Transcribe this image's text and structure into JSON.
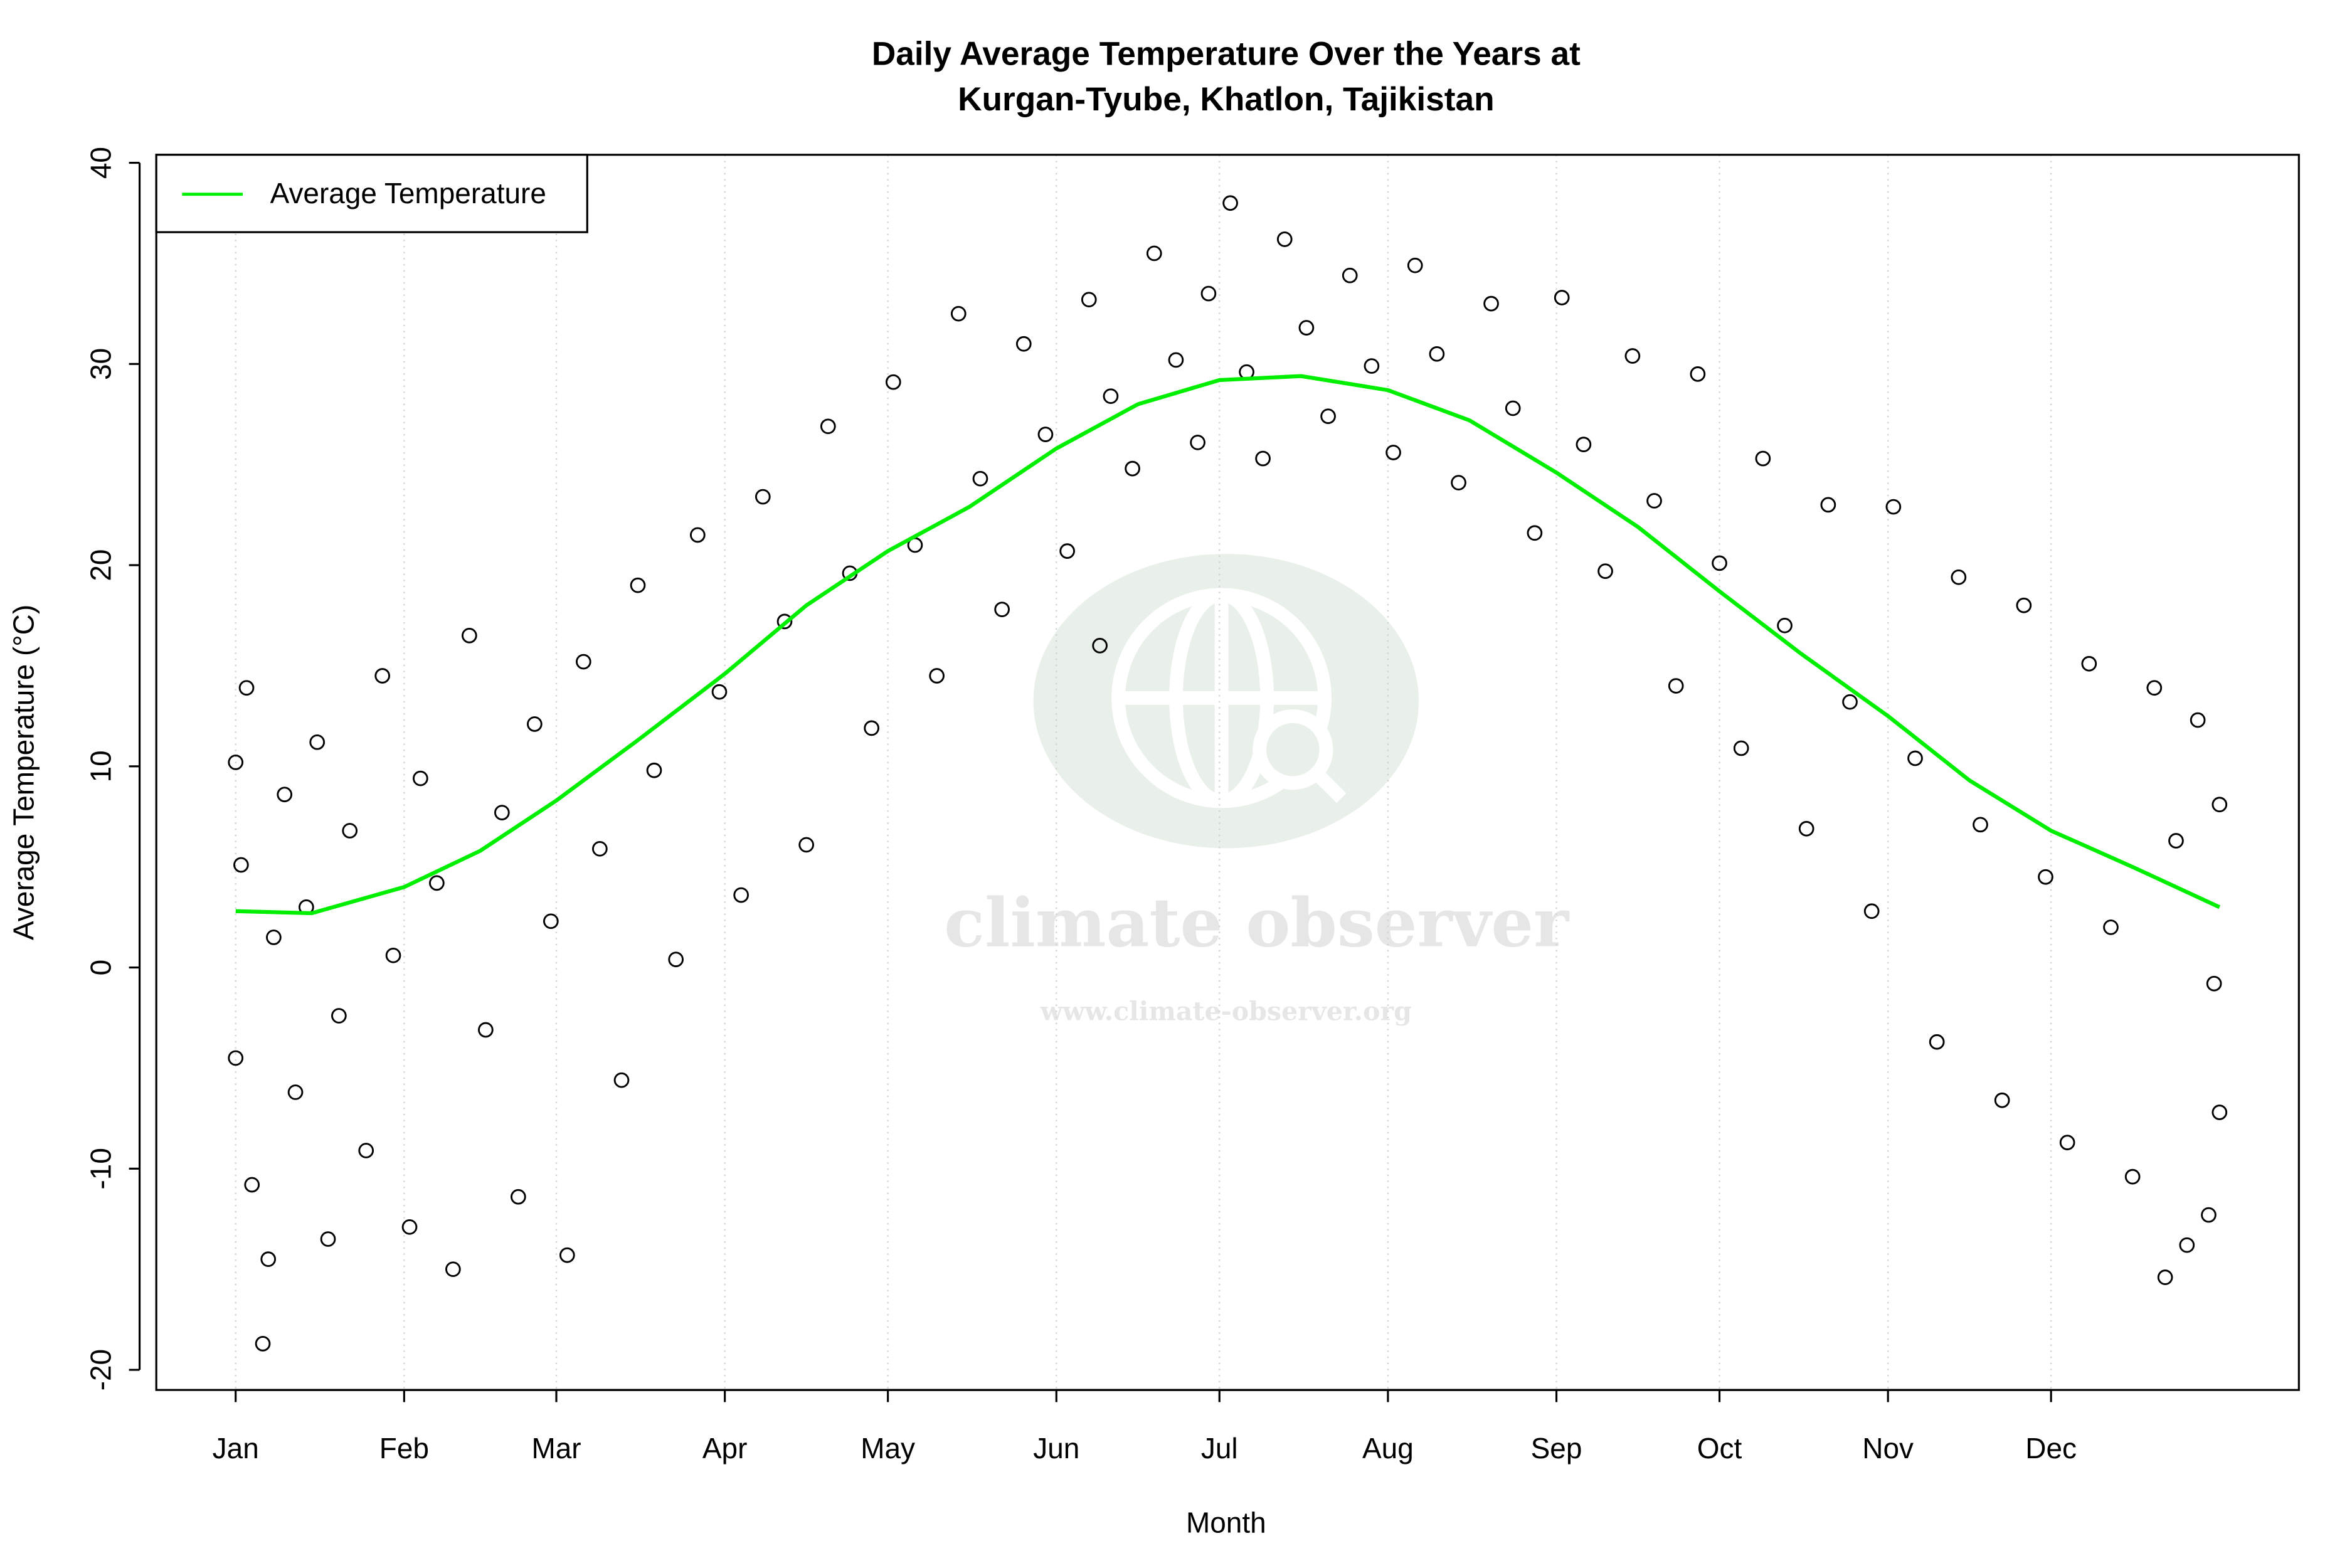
{
  "chart_data": {
    "type": "scatter",
    "title": [
      "Daily Average Temperature Over the Years at",
      "Kurgan-Tyube, Khatlon, Tajikistan"
    ],
    "x_label": "Month",
    "y_label": "Average Temperature (°C)",
    "watermark": [
      "climate observer",
      "www.climate-observer.org"
    ],
    "xlim": [
      -13.6,
      380.6
    ],
    "ylim": [
      -21,
      40.4
    ],
    "xticks": [
      {
        "value": 1,
        "label": "Jan"
      },
      {
        "value": 32,
        "label": "Feb"
      },
      {
        "value": 60,
        "label": "Mar"
      },
      {
        "value": 91,
        "label": "Apr"
      },
      {
        "value": 121,
        "label": "May"
      },
      {
        "value": 152,
        "label": "Jun"
      },
      {
        "value": 182,
        "label": "Jul"
      },
      {
        "value": 213,
        "label": "Aug"
      },
      {
        "value": 244,
        "label": "Sep"
      },
      {
        "value": 274,
        "label": "Oct"
      },
      {
        "value": 305,
        "label": "Nov"
      },
      {
        "value": 335,
        "label": "Dec"
      }
    ],
    "yticks": [
      -20,
      -10,
      0,
      10,
      20,
      30,
      40
    ],
    "grid": true,
    "legend": "top-left",
    "point_color": "#000000",
    "x": [
      1,
      1,
      2,
      3,
      4,
      6,
      7,
      8,
      10,
      12,
      14,
      16,
      18,
      20,
      22,
      25,
      28,
      30,
      33,
      35,
      38,
      41,
      44,
      47,
      50,
      53,
      56,
      59,
      62,
      65,
      68,
      72,
      75,
      78,
      82,
      86,
      90,
      94,
      98,
      102,
      106,
      110,
      114,
      118,
      122,
      126,
      130,
      134,
      138,
      142,
      146,
      150,
      154,
      158,
      160,
      162,
      166,
      170,
      174,
      178,
      180,
      184,
      187,
      190,
      194,
      198,
      202,
      206,
      210,
      214,
      218,
      222,
      226,
      232,
      236,
      240,
      245,
      249,
      253,
      258,
      262,
      266,
      270,
      274,
      278,
      282,
      286,
      290,
      294,
      298,
      302,
      306,
      310,
      314,
      318,
      322,
      326,
      330,
      334,
      338,
      342,
      346,
      350,
      354,
      356,
      358,
      360,
      362,
      364,
      365,
      366,
      366
    ],
    "values": [
      10.2,
      -4.5,
      5.1,
      13.9,
      -10.8,
      -18.7,
      -14.5,
      1.5,
      8.6,
      -6.2,
      3.0,
      11.2,
      -13.5,
      -2.4,
      6.8,
      -9.1,
      14.5,
      0.6,
      -12.9,
      9.4,
      4.2,
      -15.0,
      16.5,
      -3.1,
      7.7,
      -11.4,
      12.1,
      2.3,
      -14.3,
      15.2,
      5.9,
      -5.6,
      19.0,
      9.8,
      0.4,
      21.5,
      13.7,
      3.6,
      23.4,
      17.2,
      6.1,
      26.9,
      19.6,
      11.9,
      29.1,
      21.0,
      14.5,
      32.5,
      24.3,
      17.8,
      31.0,
      26.5,
      20.7,
      33.2,
      16.0,
      28.4,
      24.8,
      35.5,
      30.2,
      26.1,
      33.5,
      38.0,
      29.6,
      25.3,
      36.2,
      31.8,
      27.4,
      34.4,
      29.9,
      25.6,
      34.9,
      30.5,
      24.1,
      33.0,
      27.8,
      21.6,
      33.3,
      26.0,
      19.7,
      30.4,
      23.2,
      14.0,
      29.5,
      20.1,
      10.9,
      25.3,
      17.0,
      6.9,
      23.0,
      13.2,
      2.8,
      22.9,
      10.4,
      -3.7,
      19.4,
      7.1,
      -6.6,
      18.0,
      4.5,
      -8.7,
      15.1,
      2.0,
      -10.4,
      13.9,
      -15.4,
      6.3,
      -13.8,
      12.3,
      -12.3,
      -0.8,
      8.1,
      -7.2
    ],
    "line": {
      "name": "Average Temperature",
      "color": "#00ee00",
      "x": [
        1,
        15,
        32,
        46,
        60,
        75,
        91,
        106,
        121,
        136,
        152,
        167,
        182,
        197,
        213,
        228,
        244,
        259,
        274,
        289,
        305,
        320,
        335,
        350,
        366
      ],
      "values": [
        2.8,
        2.7,
        4.0,
        5.8,
        8.3,
        11.3,
        14.6,
        18.0,
        20.7,
        22.9,
        25.8,
        28.0,
        29.2,
        29.4,
        28.7,
        27.2,
        24.6,
        21.9,
        18.7,
        15.6,
        12.5,
        9.3,
        6.8,
        5.0,
        3.0
      ]
    }
  }
}
